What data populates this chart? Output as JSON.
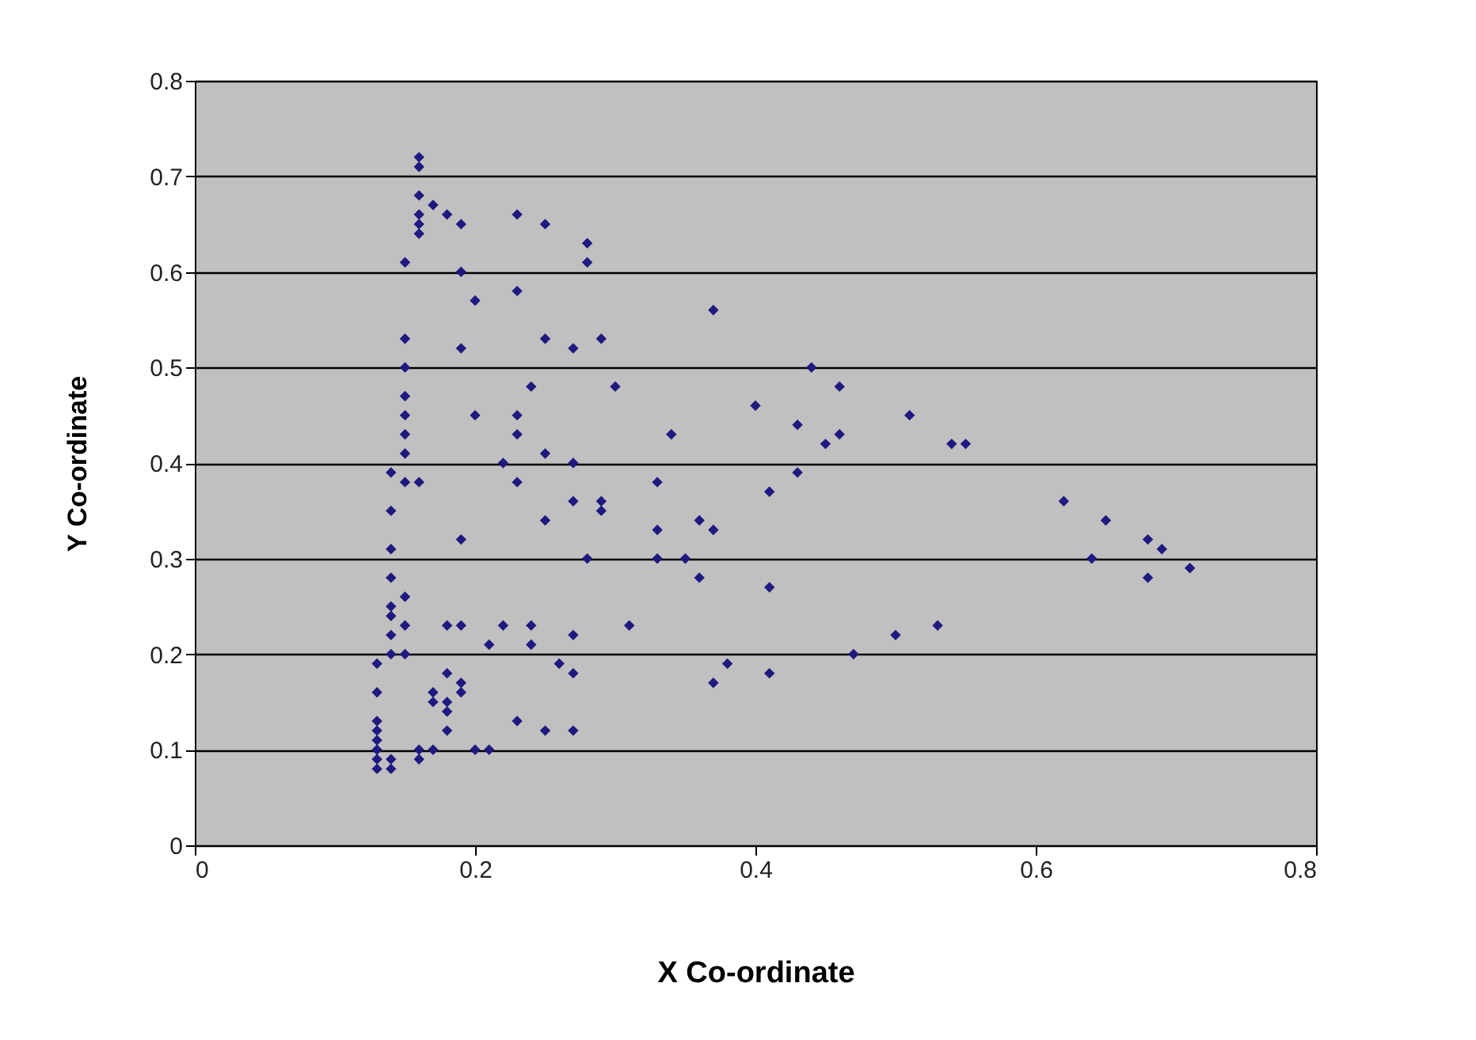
{
  "chart_data": {
    "type": "scatter",
    "xlabel": "X Co-ordinate",
    "ylabel": "Y Co-ordinate",
    "xlim": [
      0,
      0.8
    ],
    "ylim": [
      0,
      0.8
    ],
    "xticks": [
      0,
      0.2,
      0.4,
      0.6,
      0.8
    ],
    "yticks": [
      0,
      0.1,
      0.2,
      0.3,
      0.4,
      0.5,
      0.6,
      0.7,
      0.8
    ],
    "grid": "y",
    "marker": "diamond",
    "legend": false,
    "x": [
      0.16,
      0.16,
      0.16,
      0.17,
      0.16,
      0.16,
      0.16,
      0.15,
      0.15,
      0.15,
      0.15,
      0.15,
      0.15,
      0.15,
      0.14,
      0.15,
      0.16,
      0.14,
      0.14,
      0.14,
      0.15,
      0.14,
      0.14,
      0.15,
      0.14,
      0.14,
      0.15,
      0.13,
      0.13,
      0.13,
      0.13,
      0.13,
      0.13,
      0.13,
      0.13,
      0.14,
      0.14,
      0.16,
      0.16,
      0.17,
      0.17,
      0.17,
      0.18,
      0.18,
      0.18,
      0.18,
      0.19,
      0.19,
      0.18,
      0.19,
      0.19,
      0.19,
      0.19,
      0.19,
      0.18,
      0.2,
      0.2,
      0.2,
      0.21,
      0.21,
      0.22,
      0.22,
      0.23,
      0.23,
      0.23,
      0.23,
      0.23,
      0.23,
      0.24,
      0.24,
      0.24,
      0.25,
      0.25,
      0.25,
      0.25,
      0.25,
      0.26,
      0.27,
      0.27,
      0.27,
      0.27,
      0.27,
      0.27,
      0.28,
      0.28,
      0.28,
      0.29,
      0.29,
      0.29,
      0.3,
      0.31,
      0.33,
      0.33,
      0.33,
      0.34,
      0.35,
      0.36,
      0.36,
      0.37,
      0.37,
      0.37,
      0.38,
      0.4,
      0.41,
      0.41,
      0.41,
      0.43,
      0.43,
      0.44,
      0.45,
      0.46,
      0.46,
      0.47,
      0.5,
      0.51,
      0.53,
      0.54,
      0.55,
      0.62,
      0.64,
      0.65,
      0.68,
      0.68,
      0.69,
      0.71
    ],
    "series": [
      {
        "color": "#1f1a80",
        "values": [
          0.72,
          0.71,
          0.68,
          0.67,
          0.66,
          0.65,
          0.64,
          0.61,
          0.53,
          0.5,
          0.47,
          0.45,
          0.43,
          0.41,
          0.39,
          0.38,
          0.38,
          0.35,
          0.31,
          0.28,
          0.26,
          0.25,
          0.24,
          0.23,
          0.22,
          0.2,
          0.2,
          0.19,
          0.16,
          0.13,
          0.12,
          0.11,
          0.1,
          0.09,
          0.08,
          0.08,
          0.09,
          0.1,
          0.09,
          0.1,
          0.15,
          0.16,
          0.15,
          0.14,
          0.12,
          0.18,
          0.17,
          0.16,
          0.23,
          0.23,
          0.32,
          0.52,
          0.6,
          0.65,
          0.66,
          0.57,
          0.45,
          0.1,
          0.1,
          0.21,
          0.23,
          0.4,
          0.38,
          0.43,
          0.45,
          0.58,
          0.66,
          0.13,
          0.48,
          0.23,
          0.21,
          0.12,
          0.34,
          0.41,
          0.53,
          0.65,
          0.19,
          0.18,
          0.22,
          0.12,
          0.36,
          0.4,
          0.52,
          0.63,
          0.61,
          0.3,
          0.35,
          0.36,
          0.53,
          0.48,
          0.23,
          0.38,
          0.33,
          0.3,
          0.43,
          0.3,
          0.34,
          0.28,
          0.33,
          0.56,
          0.17,
          0.19,
          0.46,
          0.37,
          0.27,
          0.18,
          0.39,
          0.44,
          0.5,
          0.42,
          0.43,
          0.48,
          0.2,
          0.22,
          0.45,
          0.23,
          0.42,
          0.42,
          0.36,
          0.3,
          0.34,
          0.32,
          0.28,
          0.31,
          0.29
        ]
      }
    ]
  }
}
